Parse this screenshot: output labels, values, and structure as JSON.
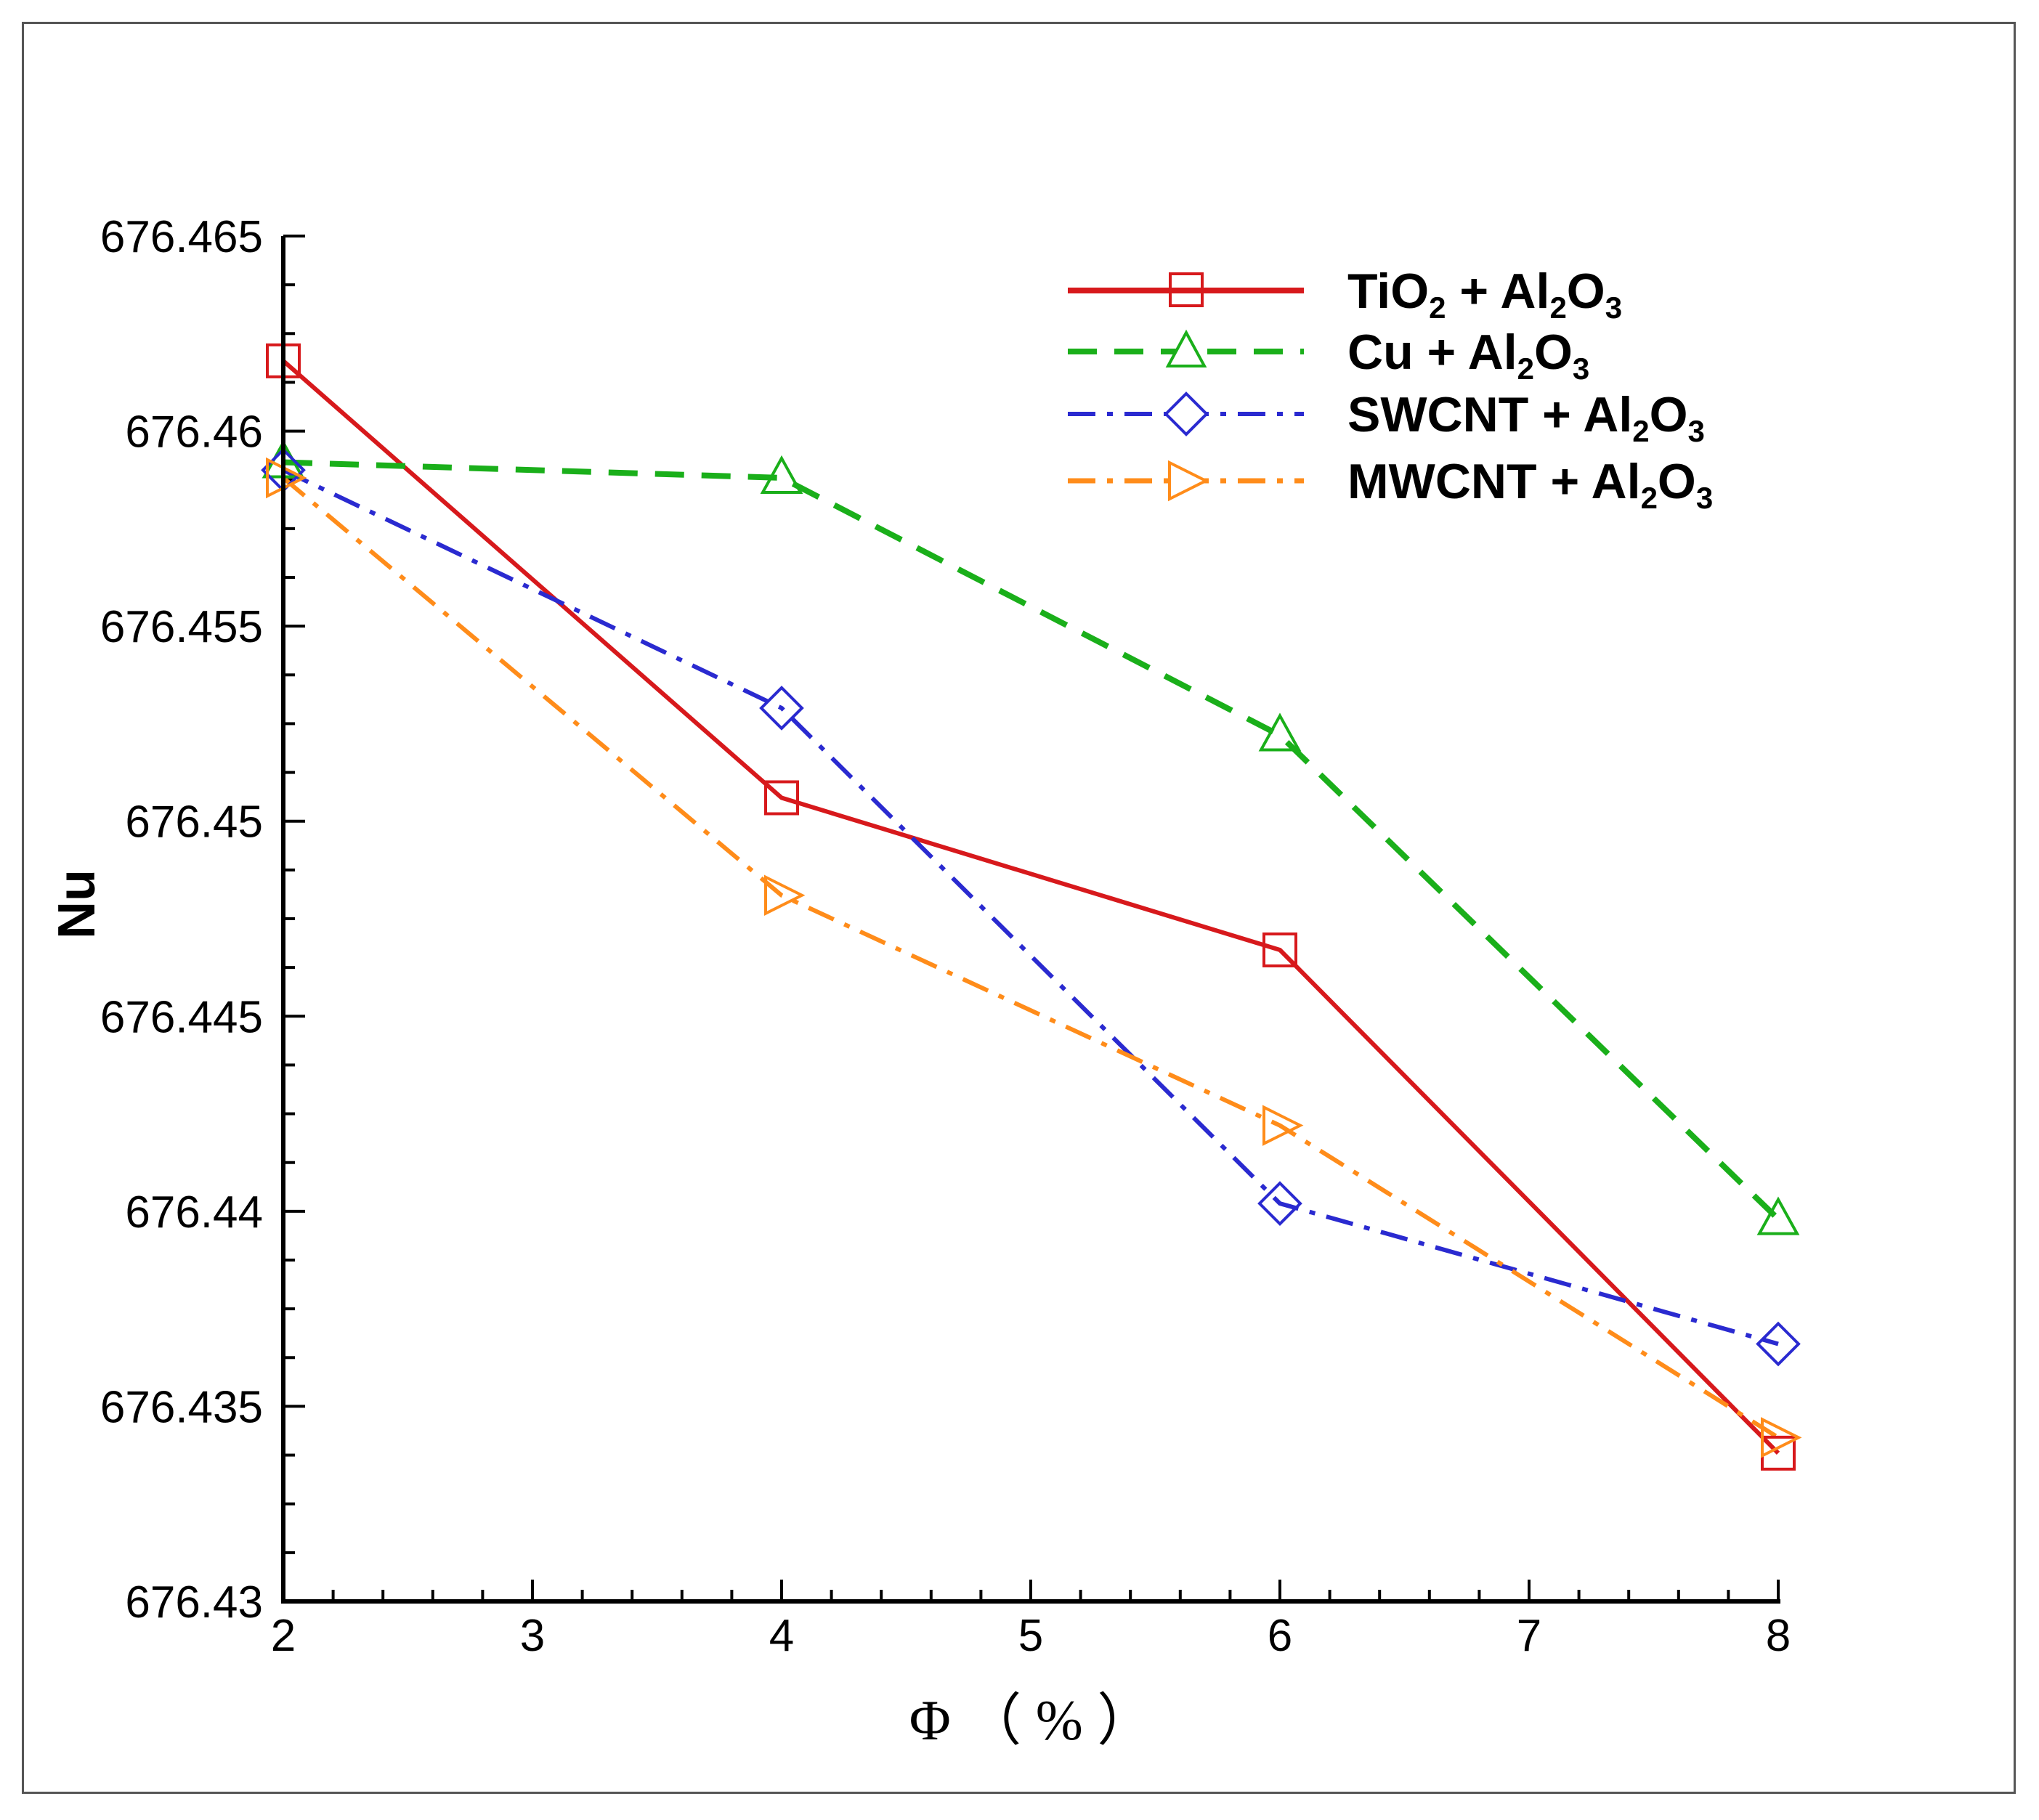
{
  "chart_data": {
    "type": "line",
    "title": "",
    "xlabel": "Φ  （  %  ）",
    "ylabel": "Nu",
    "xlim": [
      2,
      8
    ],
    "ylim": [
      676.43,
      676.465
    ],
    "xticks": [
      2,
      3,
      4,
      5,
      6,
      7,
      8
    ],
    "xtick_labels": [
      "2",
      "3",
      "4",
      "5",
      "6",
      "7",
      "8"
    ],
    "yticks": [
      676.43,
      676.435,
      676.44,
      676.445,
      676.45,
      676.455,
      676.46,
      676.465
    ],
    "ytick_labels": [
      "676.43",
      "676.435",
      "676.44",
      "676.445",
      "676.45",
      "676.455",
      "676.46",
      "676.465"
    ],
    "x": [
      2,
      4,
      6,
      8
    ],
    "legend_position": "top-right",
    "series": [
      {
        "name": "TiO2 + Al2O3",
        "label": {
          "a": "TiO",
          "b": "2",
          "c": " + Al",
          "d": "2",
          "e": "O",
          "f": "3"
        },
        "values": [
          676.4618,
          676.4506,
          676.4467,
          676.4338
        ],
        "color": "#d7191c",
        "dash": "solid",
        "marker": "square"
      },
      {
        "name": "Cu + Al2O3",
        "label": {
          "a": "Cu + Al",
          "b": "2",
          "c": "O",
          "d": "3"
        },
        "values": [
          676.4592,
          676.4588,
          676.4522,
          676.4398
        ],
        "color": "#1aaf1a",
        "dash": "dashed",
        "marker": "triangle-up"
      },
      {
        "name": "SWCNT + Al2O3",
        "label": {
          "a": "SWCNT + Al",
          "b": "2",
          "c": "O",
          "d": "3"
        },
        "values": [
          676.459,
          676.4529,
          676.4402,
          676.4366
        ],
        "color": "#2a2ad0",
        "dash": "dashdot",
        "marker": "diamond"
      },
      {
        "name": "MWCNT + Al2O3",
        "label": {
          "a": "MWCNT + Al",
          "b": "2",
          "c": "O",
          "d": "3"
        },
        "values": [
          676.4588,
          676.4481,
          676.4422,
          676.4342
        ],
        "color": "#ff8c1a",
        "dash": "dashdot",
        "marker": "triangle-right"
      }
    ]
  }
}
